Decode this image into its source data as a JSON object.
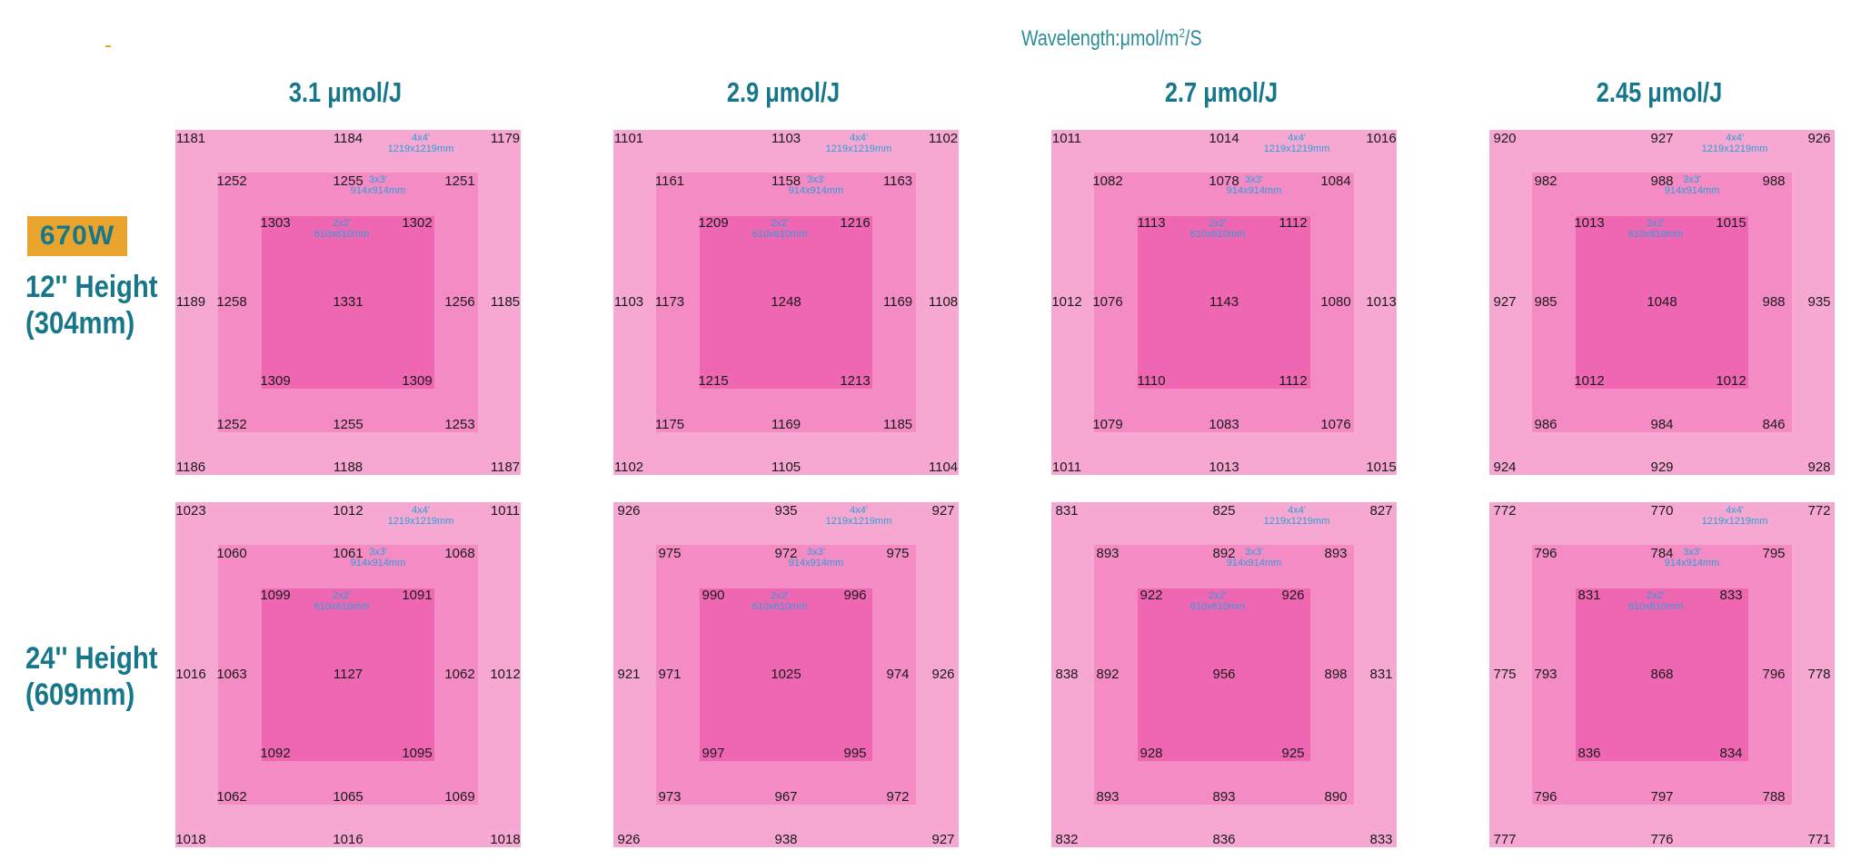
{
  "header": {
    "unit_label": "Wavelength:μmol/m",
    "unit_sup": "2",
    "unit_suffix": "/S"
  },
  "wattage_badge": "670W",
  "zone_labels": {
    "z4": {
      "size": "4x4'",
      "mm": "1219x1219mm"
    },
    "z3": {
      "size": "3x3'",
      "mm": "914x914mm"
    },
    "z2": {
      "size": "2x2'",
      "mm": "610x610mm"
    }
  },
  "columns": [
    {
      "title": "3.1 μmol/J"
    },
    {
      "title": "2.9 μmol/J"
    },
    {
      "title": "2.7 μmol/J"
    },
    {
      "title": "2.45 μmol/J"
    }
  ],
  "rows": [
    {
      "height_label": "12'' Height",
      "height_mm": "(304mm)",
      "panels": [
        {
          "outer_tl": "1181",
          "outer_tc": "1184",
          "outer_tr": "1179",
          "outer_ml": "1189",
          "outer_mr": "1185",
          "outer_bl": "1186",
          "outer_bc": "1188",
          "outer_br": "1187",
          "mid_tl": "1252",
          "mid_tc": "1255",
          "mid_tr": "1251",
          "mid_ml": "1258",
          "mid_mr": "1256",
          "mid_bl": "1252",
          "mid_bc": "1255",
          "mid_br": "1253",
          "in_tl": "1303",
          "in_tr": "1302",
          "in_c": "1331",
          "in_bl": "1309",
          "in_br": "1309"
        },
        {
          "outer_tl": "1101",
          "outer_tc": "1103",
          "outer_tr": "1102",
          "outer_ml": "1103",
          "outer_mr": "1108",
          "outer_bl": "1102",
          "outer_bc": "1105",
          "outer_br": "1104",
          "mid_tl": "1161",
          "mid_tc": "1158",
          "mid_tr": "1163",
          "mid_ml": "1173",
          "mid_mr": "1169",
          "mid_bl": "1175",
          "mid_bc": "1169",
          "mid_br": "1185",
          "in_tl": "1209",
          "in_tr": "1216",
          "in_c": "1248",
          "in_bl": "1215",
          "in_br": "1213"
        },
        {
          "outer_tl": "1011",
          "outer_tc": "1014",
          "outer_tr": "1016",
          "outer_ml": "1012",
          "outer_mr": "1013",
          "outer_bl": "1011",
          "outer_bc": "1013",
          "outer_br": "1015",
          "mid_tl": "1082",
          "mid_tc": "1078",
          "mid_tr": "1084",
          "mid_ml": "1076",
          "mid_mr": "1080",
          "mid_bl": "1079",
          "mid_bc": "1083",
          "mid_br": "1076",
          "in_tl": "1113",
          "in_tr": "1112",
          "in_c": "1143",
          "in_bl": "1110",
          "in_br": "1112"
        },
        {
          "outer_tl": "920",
          "outer_tc": "927",
          "outer_tr": "926",
          "outer_ml": "927",
          "outer_mr": "935",
          "outer_bl": "924",
          "outer_bc": "929",
          "outer_br": "928",
          "mid_tl": "982",
          "mid_tc": "988",
          "mid_tr": "988",
          "mid_ml": "985",
          "mid_mr": "988",
          "mid_bl": "986",
          "mid_bc": "984",
          "mid_br": "846",
          "in_tl": "1013",
          "in_tr": "1015",
          "in_c": "1048",
          "in_bl": "1012",
          "in_br": "1012"
        }
      ]
    },
    {
      "height_label": "24'' Height",
      "height_mm": "(609mm)",
      "panels": [
        {
          "outer_tl": "1023",
          "outer_tc": "1012",
          "outer_tr": "1011",
          "outer_ml": "1016",
          "outer_mr": "1012",
          "outer_bl": "1018",
          "outer_bc": "1016",
          "outer_br": "1018",
          "mid_tl": "1060",
          "mid_tc": "1061",
          "mid_tr": "1068",
          "mid_ml": "1063",
          "mid_mr": "1062",
          "mid_bl": "1062",
          "mid_bc": "1065",
          "mid_br": "1069",
          "in_tl": "1099",
          "in_tr": "1091",
          "in_c": "1127",
          "in_bl": "1092",
          "in_br": "1095"
        },
        {
          "outer_tl": "926",
          "outer_tc": "935",
          "outer_tr": "927",
          "outer_ml": "921",
          "outer_mr": "926",
          "outer_bl": "926",
          "outer_bc": "938",
          "outer_br": "927",
          "mid_tl": "975",
          "mid_tc": "972",
          "mid_tr": "975",
          "mid_ml": "971",
          "mid_mr": "974",
          "mid_bl": "973",
          "mid_bc": "967",
          "mid_br": "972",
          "in_tl": "990",
          "in_tr": "996",
          "in_c": "1025",
          "in_bl": "997",
          "in_br": "995"
        },
        {
          "outer_tl": "831",
          "outer_tc": "825",
          "outer_tr": "827",
          "outer_ml": "838",
          "outer_mr": "831",
          "outer_bl": "832",
          "outer_bc": "836",
          "outer_br": "833",
          "mid_tl": "893",
          "mid_tc": "892",
          "mid_tr": "893",
          "mid_ml": "892",
          "mid_mr": "898",
          "mid_bl": "893",
          "mid_bc": "893",
          "mid_br": "890",
          "in_tl": "922",
          "in_tr": "926",
          "in_c": "956",
          "in_bl": "928",
          "in_br": "925"
        },
        {
          "outer_tl": "772",
          "outer_tc": "770",
          "outer_tr": "772",
          "outer_ml": "775",
          "outer_mr": "778",
          "outer_bl": "777",
          "outer_bc": "776",
          "outer_br": "771",
          "mid_tl": "796",
          "mid_tc": "784",
          "mid_tr": "795",
          "mid_ml": "793",
          "mid_mr": "796",
          "mid_bl": "796",
          "mid_bc": "797",
          "mid_br": "788",
          "in_tl": "831",
          "in_tr": "833",
          "in_c": "868",
          "in_bl": "836",
          "in_br": "834"
        }
      ]
    }
  ],
  "colors": {
    "title_teal": "#17778a",
    "unit_teal": "#2b8c9a",
    "badge_orange": "#e8a42c",
    "zone_outer_pink": "#f6a8d2",
    "zone_mid_pink": "#f58bc5",
    "zone_inner_pink": "#ef66b3",
    "zone_label_blue": "#2aa0d8"
  }
}
